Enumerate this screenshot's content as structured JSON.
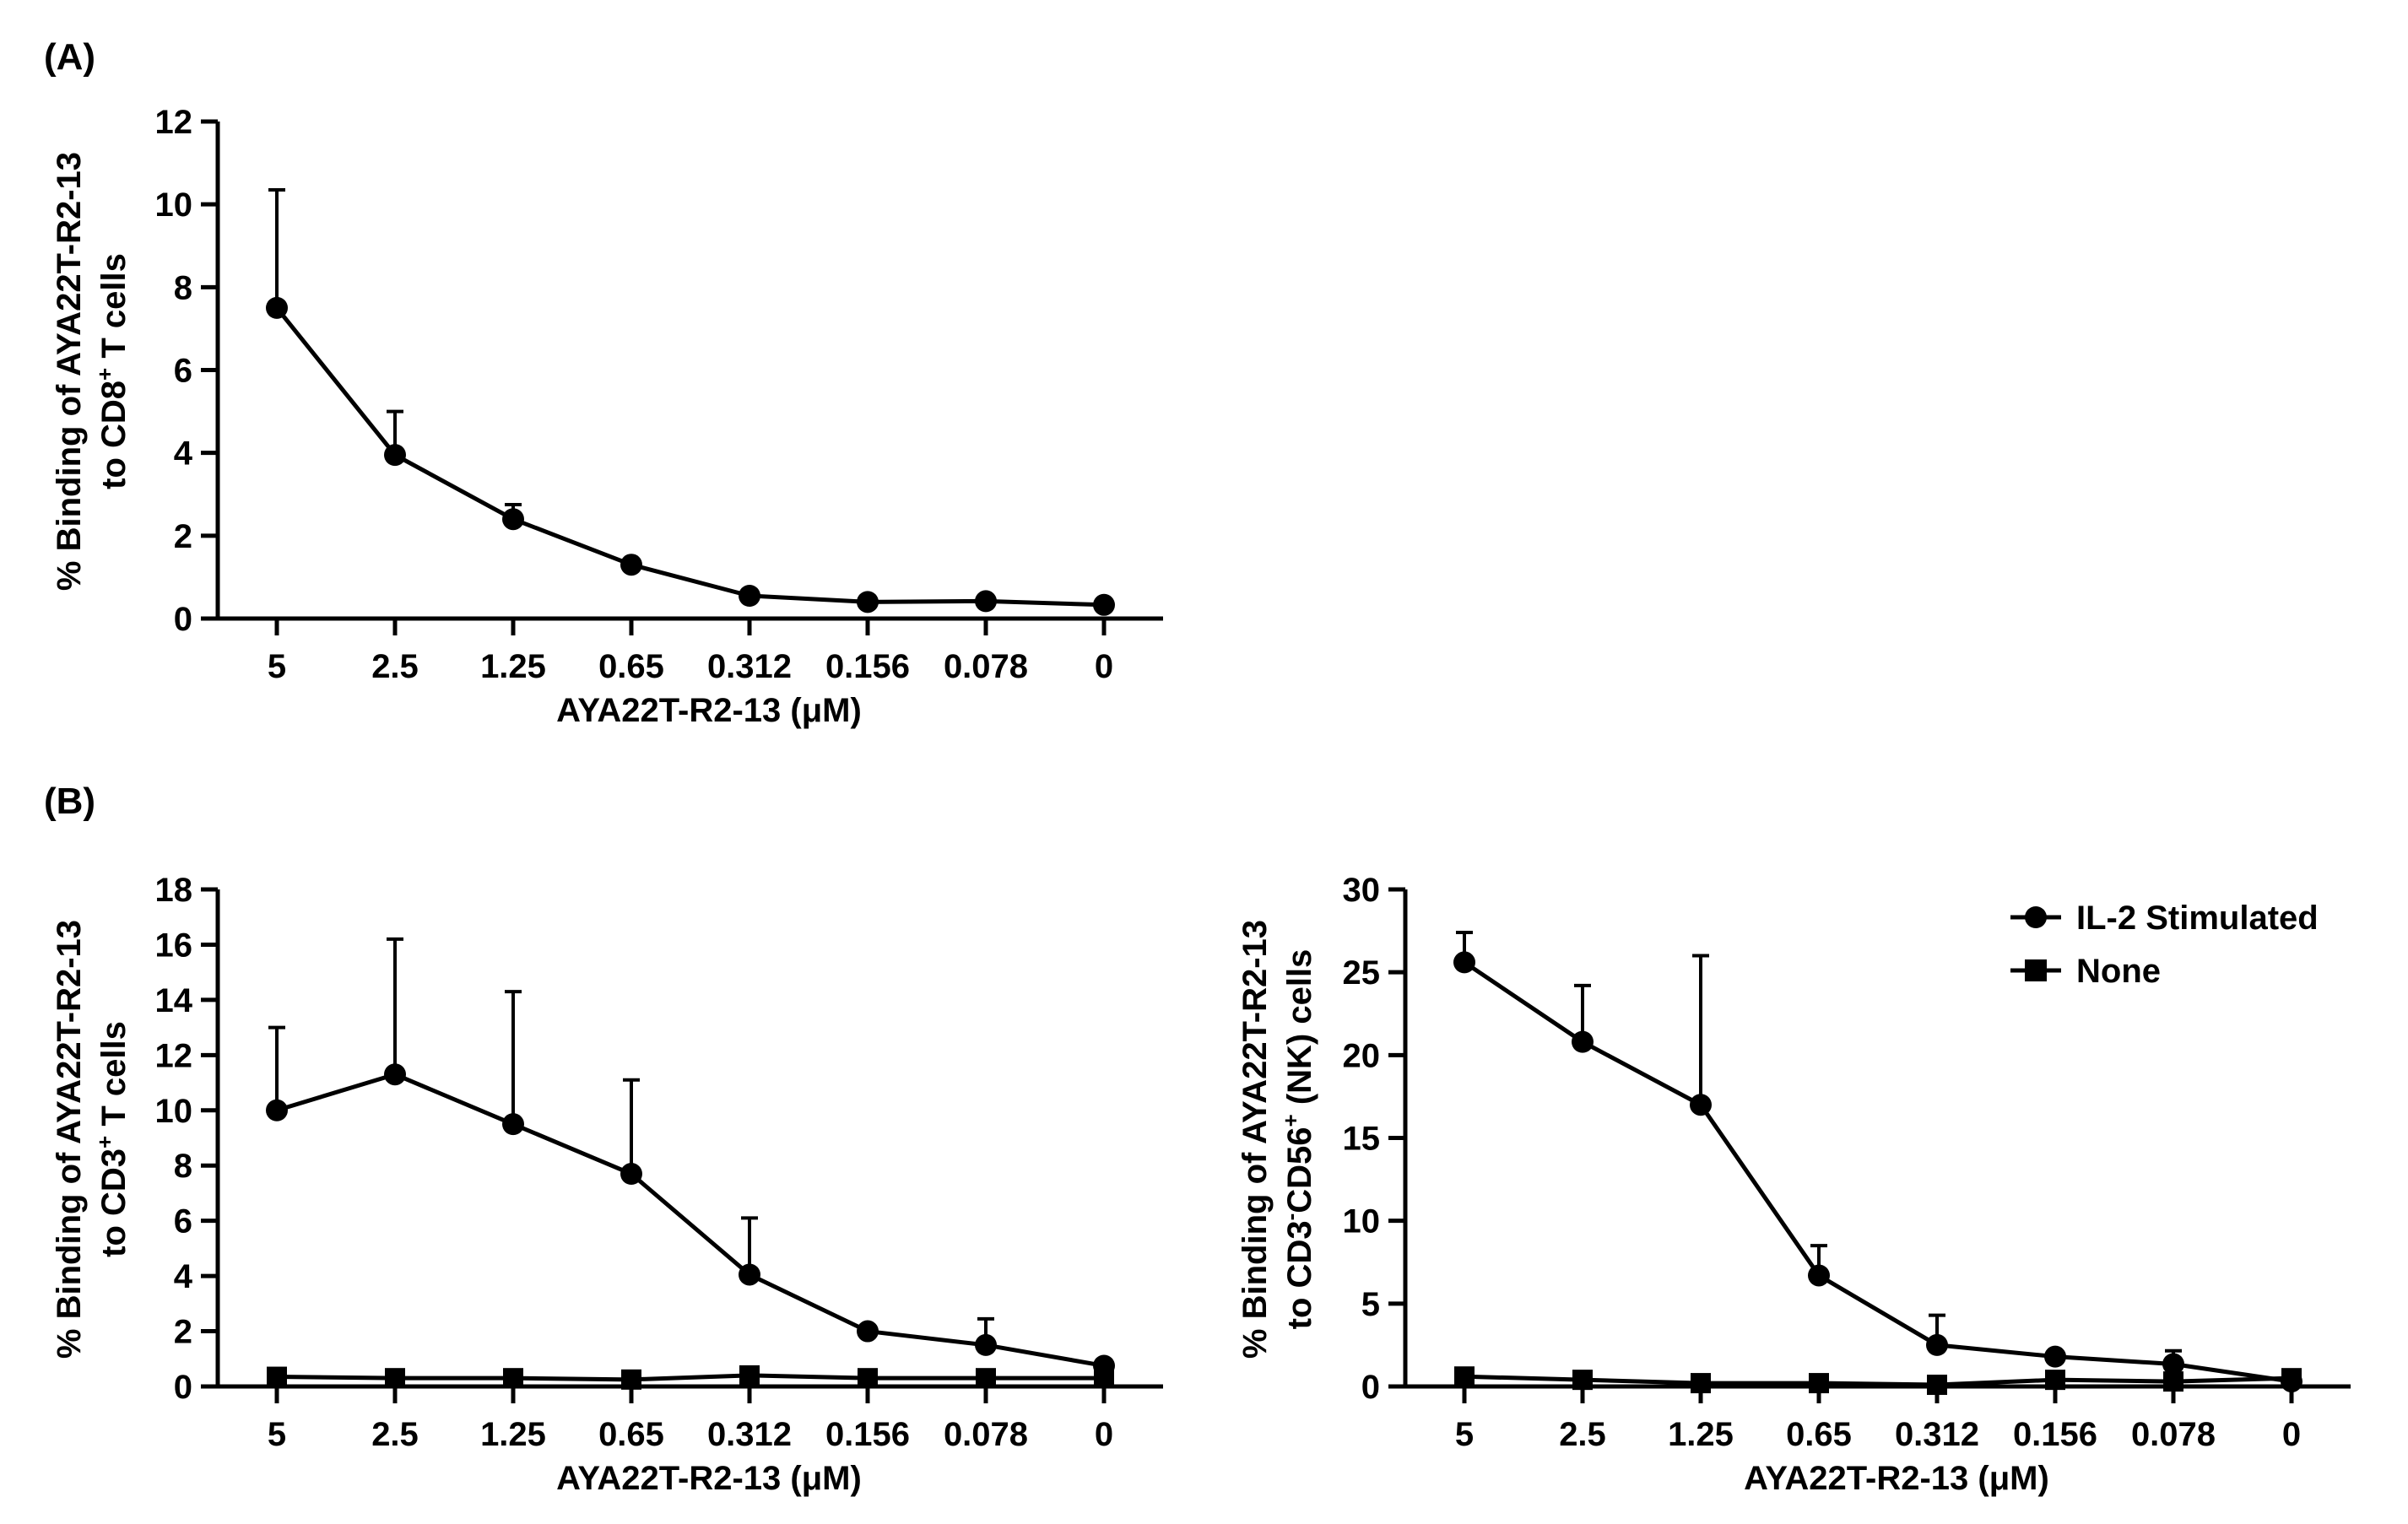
{
  "panel_labels": {
    "a": "(A)",
    "b": "(B)"
  },
  "legend": {
    "series1": "IL-2 Stimulated",
    "series2": "None"
  },
  "chart_data": [
    {
      "id": "A",
      "type": "line",
      "categories": [
        "5",
        "2.5",
        "1.25",
        "0.65",
        "0.312",
        "0.156",
        "0.078",
        "0"
      ],
      "xlabel": "AYA22T-R2-13 (μM)",
      "ylabel_line1": "% Binding of AYA22T-R2-13",
      "ylabel_line2_pre": "to CD8",
      "ylabel_line2_sup": "+",
      "ylabel_line2_post": " T cells",
      "ylim": [
        0,
        12
      ],
      "yticks": [
        0,
        2,
        4,
        6,
        8,
        10,
        12
      ],
      "series": [
        {
          "name": "CD8+ T cells",
          "marker": "circle",
          "values": [
            7.5,
            3.95,
            2.4,
            1.3,
            0.55,
            0.4,
            0.42,
            0.33
          ],
          "errors": [
            2.85,
            1.05,
            0.35,
            0,
            0,
            0,
            0,
            0
          ]
        }
      ]
    },
    {
      "id": "B1",
      "type": "line",
      "categories": [
        "5",
        "2.5",
        "1.25",
        "0.65",
        "0.312",
        "0.156",
        "0.078",
        "0"
      ],
      "xlabel": "AYA22T-R2-13 (μM)",
      "ylabel_line1": "% Binding of AYA22T-R2-13",
      "ylabel_line2_pre": "to CD3",
      "ylabel_line2_sup": "+",
      "ylabel_line2_post": " T cells",
      "ylim": [
        0,
        18
      ],
      "yticks": [
        0,
        2,
        4,
        6,
        8,
        10,
        12,
        14,
        16,
        18
      ],
      "series": [
        {
          "name": "IL-2 Stimulated",
          "marker": "circle",
          "values": [
            10.0,
            11.3,
            9.5,
            7.7,
            4.05,
            2.0,
            1.5,
            0.75
          ],
          "errors": [
            3.0,
            4.9,
            4.8,
            3.4,
            2.05,
            0,
            0.95,
            0
          ]
        },
        {
          "name": "None",
          "marker": "square",
          "values": [
            0.35,
            0.3,
            0.3,
            0.25,
            0.4,
            0.3,
            0.3,
            0.3
          ],
          "errors": [
            0,
            0,
            0,
            0,
            0.25,
            0,
            0,
            0
          ]
        }
      ]
    },
    {
      "id": "B2",
      "type": "line",
      "categories": [
        "5",
        "2.5",
        "1.25",
        "0.65",
        "0.312",
        "0.156",
        "0.078",
        "0"
      ],
      "xlabel": "AYA22T-R2-13 (μM)",
      "ylabel_line1": "% Binding of AYA22T-R2-13",
      "ylabel_line2_pre": "to CD3",
      "ylabel_line2_sup_minus": "-",
      "ylabel_line2_mid": "CD56",
      "ylabel_line2_sup": "+",
      "ylabel_line2_post": " (NK) cells",
      "ylim": [
        0,
        30
      ],
      "yticks": [
        0,
        5,
        10,
        15,
        20,
        25,
        30
      ],
      "legend_position": "top-right",
      "series": [
        {
          "name": "IL-2 Stimulated",
          "marker": "circle",
          "values": [
            25.6,
            20.8,
            17.0,
            6.7,
            2.5,
            1.8,
            1.35,
            0.3
          ],
          "errors": [
            1.8,
            3.4,
            9.0,
            1.8,
            1.8,
            0,
            0.8,
            0
          ]
        },
        {
          "name": "None",
          "marker": "square",
          "values": [
            0.6,
            0.4,
            0.2,
            0.2,
            0.1,
            0.4,
            0.3,
            0.5
          ],
          "errors": [
            0,
            0,
            0,
            0,
            0,
            0,
            0,
            0
          ]
        }
      ]
    }
  ]
}
